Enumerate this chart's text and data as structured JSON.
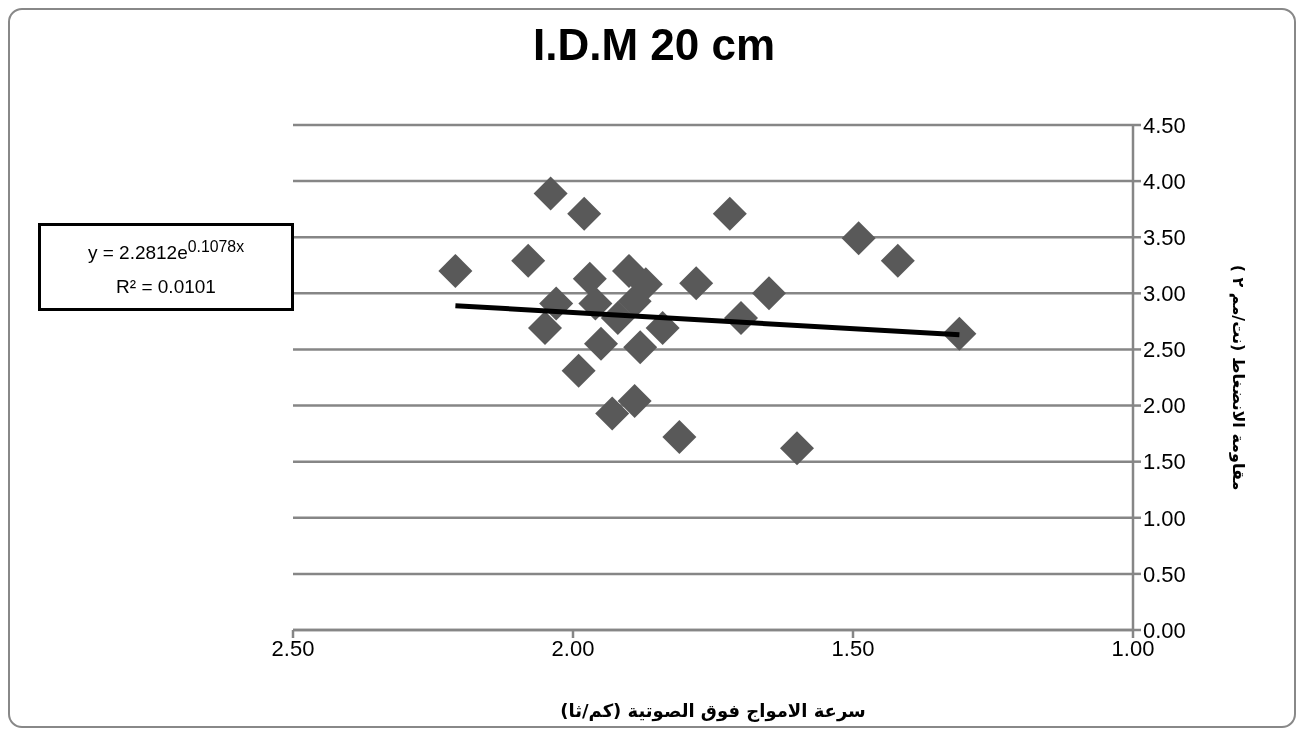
{
  "chart_data": {
    "type": "scatter",
    "title": "I.D.M 20 cm",
    "xlabel": "سرعة الامواج فوق الصوتية (كم/ثا)",
    "ylabel": "مقاومة الانضغاط (نت/مم ٢ )",
    "annotations": [
      "y = 2.2812e$^{0.1078x}$",
      "R² = 0.0101"
    ],
    "xlim": [
      2.5,
      1.0
    ],
    "xticks": [
      {
        "value": 2.5,
        "label": "2.50"
      },
      {
        "value": 2.0,
        "label": "2.00"
      },
      {
        "value": 1.5,
        "label": "1.50"
      },
      {
        "value": 1.0,
        "label": "1.00"
      }
    ],
    "ylim": [
      0,
      4.5
    ],
    "yticks": [
      {
        "value": 0,
        "label": "0.00"
      },
      {
        "value": 0.5,
        "label": "0.50"
      },
      {
        "value": 1,
        "label": "1.00"
      },
      {
        "value": 1.5,
        "label": "1.50"
      },
      {
        "value": 2,
        "label": "2.00"
      },
      {
        "value": 2.5,
        "label": "2.50"
      },
      {
        "value": 3,
        "label": "3.00"
      },
      {
        "value": 3.5,
        "label": "3.50"
      },
      {
        "value": 4,
        "label": "4.00"
      },
      {
        "value": 4.5,
        "label": "4.50"
      }
    ],
    "grid": "y",
    "legend": false,
    "marker": "diamond",
    "series": [
      {
        "color": "#595959",
        "x": [
          2.21,
          2.08,
          2.04,
          1.98,
          1.72,
          1.97,
          1.9,
          1.87,
          1.78,
          1.65,
          1.7,
          2.03,
          2.05,
          1.96,
          1.92,
          1.95,
          1.88,
          1.84,
          1.89,
          1.99,
          1.93,
          1.89,
          1.81,
          1.6,
          1.49,
          1.42,
          1.31
        ],
        "values": [
          3.2,
          3.29,
          3.89,
          3.71,
          3.71,
          3.13,
          3.2,
          3.08,
          3.09,
          3.0,
          2.78,
          2.91,
          2.69,
          2.91,
          2.78,
          2.55,
          2.52,
          2.69,
          2.93,
          2.31,
          1.93,
          2.04,
          1.72,
          1.62,
          3.49,
          3.29,
          2.64
        ]
      },
      {
        "type": "line",
        "color": "#000000",
        "marker": "none",
        "line_style": "solid",
        "x": [
          2.21,
          1.76,
          1.31
        ],
        "values": [
          2.89,
          2.76,
          2.63
        ]
      }
    ]
  }
}
